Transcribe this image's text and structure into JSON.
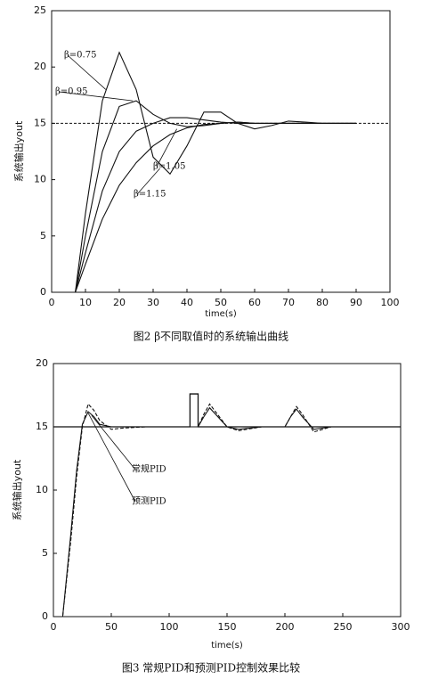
{
  "chart_data": [
    {
      "type": "line",
      "caption": "图2  β不同取值时的系统输出曲线",
      "x_label": "time(s)",
      "y_label": "系统输出yout",
      "xlim": [
        0,
        100
      ],
      "xticks": [
        0,
        10,
        20,
        30,
        40,
        50,
        60,
        70,
        80,
        90,
        100
      ],
      "ylim": [
        0,
        25
      ],
      "yticks": [
        0,
        5,
        10,
        15,
        20,
        25
      ],
      "reference_value": 15,
      "x": [
        0,
        7,
        10,
        15,
        20,
        25,
        30,
        35,
        40,
        45,
        50,
        55,
        60,
        65,
        70,
        75,
        80,
        85,
        90
      ],
      "series": [
        {
          "name": "β=0.75",
          "color": "#111",
          "values": [
            0,
            0,
            7,
            17,
            21.3,
            18,
            12,
            10.5,
            13,
            16,
            16,
            15,
            14.5,
            14.8,
            15.2,
            15.1,
            15,
            15,
            15
          ]
        },
        {
          "name": "β=0.95",
          "color": "#111",
          "values": [
            0,
            0,
            5,
            12.5,
            16.5,
            17,
            15.8,
            15,
            14.7,
            14.8,
            15,
            15.1,
            15,
            15,
            15,
            15,
            15,
            15,
            15
          ]
        },
        {
          "name": "β=1.05",
          "color": "#111",
          "values": [
            0,
            0,
            3.5,
            9,
            12.5,
            14.3,
            15,
            15.5,
            15.5,
            15.3,
            15.1,
            15,
            15,
            15,
            15,
            15,
            15,
            15,
            15
          ]
        },
        {
          "name": "β=1.15",
          "color": "#111",
          "values": [
            0,
            0,
            2.5,
            6.5,
            9.5,
            11.5,
            13,
            14,
            14.6,
            14.9,
            15,
            15.1,
            15,
            15,
            15,
            15,
            15,
            15,
            15
          ]
        }
      ]
    },
    {
      "type": "line",
      "caption": "图3  常规PID和预测PID控制效果比较",
      "x_label": "time(s)",
      "y_label": "系统输出yout",
      "xlim": [
        0,
        300
      ],
      "xticks": [
        0,
        50,
        100,
        150,
        200,
        250,
        300
      ],
      "ylim": [
        0,
        20
      ],
      "yticks": [
        0,
        5,
        10,
        15,
        20
      ],
      "reference": {
        "x": [
          0,
          118,
          118,
          125,
          125,
          300
        ],
        "values": [
          15,
          15,
          17.6,
          17.6,
          15,
          15
        ]
      },
      "x": [
        0,
        8,
        15,
        20,
        25,
        30,
        35,
        40,
        50,
        60,
        80,
        100,
        118,
        125,
        130,
        135,
        140,
        150,
        160,
        180,
        200,
        205,
        210,
        215,
        225,
        240,
        260,
        280
      ],
      "series": [
        {
          "name": "常规PID",
          "color": "#111",
          "dashed": true,
          "values": [
            0,
            0,
            6,
            11,
            15,
            16.8,
            16.3,
            15.5,
            14.8,
            14.9,
            15,
            15,
            15,
            15,
            16,
            16.8,
            16.2,
            15,
            14.7,
            15,
            15,
            15.8,
            16.6,
            16,
            14.6,
            15,
            15,
            15
          ]
        },
        {
          "name": "预测PID",
          "color": "#111",
          "dashed": false,
          "values": [
            0,
            0,
            6.5,
            11.5,
            15.2,
            16.2,
            15.8,
            15.2,
            15,
            15,
            15,
            15,
            15,
            15,
            15.8,
            16.5,
            16,
            15,
            14.8,
            15,
            15,
            15.8,
            16.4,
            15.8,
            14.8,
            15,
            15,
            15
          ]
        }
      ]
    }
  ]
}
